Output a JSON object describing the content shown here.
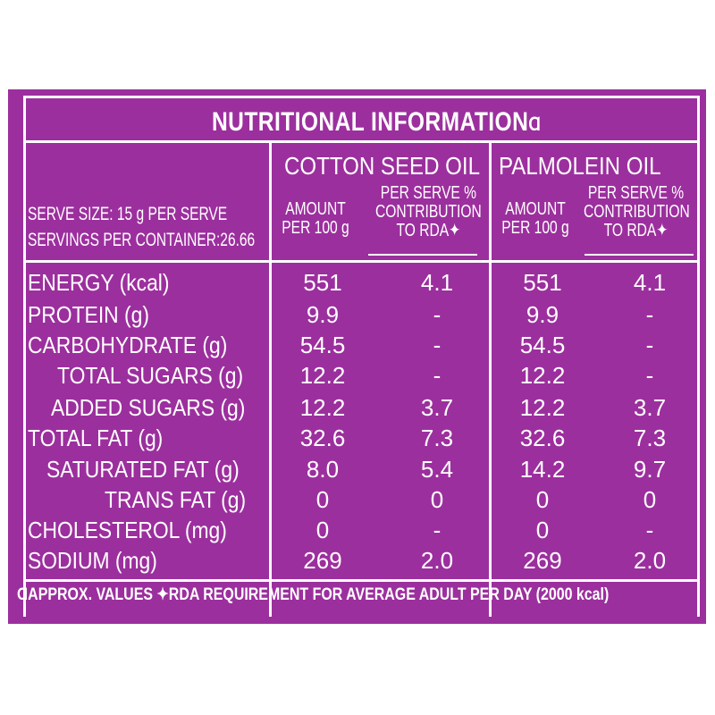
{
  "title": "NUTRITIONAL INFORMATION",
  "title_marker": "Ɑ",
  "columns": {
    "cotton": "COTTON SEED OIL",
    "palm": "PALMOLEIN OIL"
  },
  "sub_headers": {
    "amount": "AMOUNT\nPER 100 g",
    "per_serve": "PER SERVE %\nCONTRIBUTION\nTO RDA✦"
  },
  "serve_info": {
    "serve_size": "SERVE SIZE: 15 g PER SERVE",
    "servings": "SERVINGS PER CONTAINER:26.66"
  },
  "rows": [
    {
      "label": "ENERGY (kcal)",
      "cotton_amount": "551",
      "cotton_rda": "4.1",
      "palm_amount": "551",
      "palm_rda": "4.1"
    },
    {
      "label": "PROTEIN (g)",
      "cotton_amount": "9.9",
      "cotton_rda": "-",
      "palm_amount": "9.9",
      "palm_rda": "-"
    },
    {
      "label": "CARBOHYDRATE (g)",
      "cotton_amount": "54.5",
      "cotton_rda": "-",
      "palm_amount": "54.5",
      "palm_rda": "-"
    },
    {
      "label": "TOTAL SUGARS (g)",
      "cotton_amount": "12.2",
      "cotton_rda": "-",
      "palm_amount": "12.2",
      "palm_rda": "-"
    },
    {
      "label": "ADDED SUGARS (g)",
      "cotton_amount": "12.2",
      "cotton_rda": "3.7",
      "palm_amount": "12.2",
      "palm_rda": "3.7"
    },
    {
      "label": "TOTAL FAT (g)",
      "cotton_amount": "32.6",
      "cotton_rda": "7.3",
      "palm_amount": "32.6",
      "palm_rda": "7.3"
    },
    {
      "label": "SATURATED FAT (g)",
      "cotton_amount": "8.0",
      "cotton_rda": "5.4",
      "palm_amount": "14.2",
      "palm_rda": "9.7"
    },
    {
      "label": "TRANS FAT (g)",
      "cotton_amount": "0",
      "cotton_rda": "0",
      "palm_amount": "0",
      "palm_rda": "0"
    },
    {
      "label": "CHOLESTEROL (mg)",
      "cotton_amount": "0",
      "cotton_rda": "-",
      "palm_amount": "0",
      "palm_rda": "-"
    },
    {
      "label": "SODIUM (mg)",
      "cotton_amount": "269",
      "cotton_rda": "2.0",
      "palm_amount": "269",
      "palm_rda": "2.0"
    }
  ],
  "footer": "ⱭAPPROX. VALUES   ✦RDA REQUIREMENT FOR AVERAGE ADULT PER DAY (2000 kcal)",
  "colors": {
    "background": "#9c2f9e",
    "text": "#ffffff"
  }
}
